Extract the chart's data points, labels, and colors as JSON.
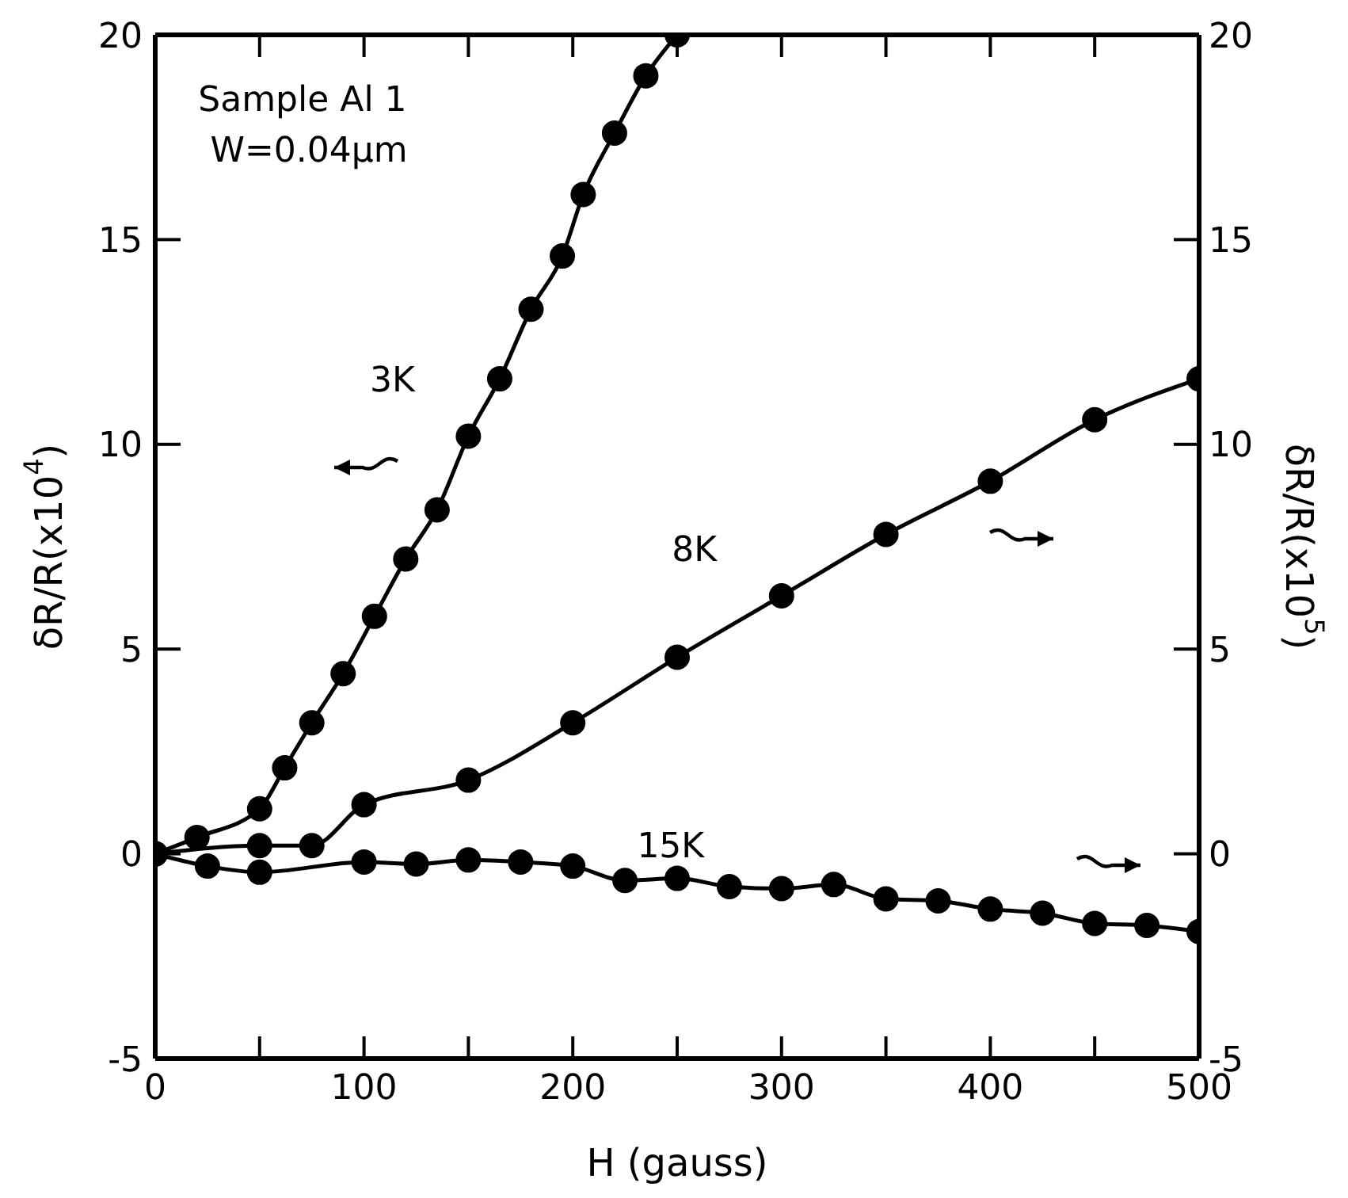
{
  "chart_data": {
    "type": "line",
    "xlabel": "H (gauss)",
    "ylabel": "δR/R(x10$^{4}$)",
    "y2label": "δR/R(x10$^{5}$)",
    "annotations": [
      "Sample Al 1",
      "W=0.04μm"
    ],
    "xlim": [
      0,
      500
    ],
    "xticks": [
      0,
      {
        "value": 50,
        "label": null
      },
      100,
      {
        "value": 150,
        "label": null
      },
      200,
      {
        "value": 250,
        "label": null
      },
      300,
      {
        "value": 350,
        "label": null
      },
      400,
      {
        "value": 450,
        "label": null
      },
      500
    ],
    "ylim": [
      -5,
      20
    ],
    "yticks": [
      -5,
      0,
      5,
      10,
      15,
      20
    ],
    "y2lim": [
      -5,
      20
    ],
    "y2ticks": [
      -5,
      0,
      5,
      10,
      15,
      20
    ],
    "marker": "circle",
    "line_style": "solid",
    "series": [
      {
        "name": "3K",
        "color": "#000000",
        "x": [
          0,
          20,
          50,
          62,
          75,
          90,
          105,
          120,
          135,
          150,
          165,
          180,
          195,
          205,
          220,
          235,
          250
        ],
        "values": [
          0,
          0.4,
          1.1,
          2.1,
          3.2,
          4.4,
          5.8,
          7.2,
          8.4,
          10.2,
          11.6,
          13.3,
          14.6,
          16.1,
          17.6,
          19.0,
          20.0
        ]
      },
      {
        "name": "8K",
        "color": "#000000",
        "axis": "y2",
        "x": [
          0,
          50,
          75,
          100,
          150,
          200,
          250,
          300,
          350,
          400,
          450,
          500
        ],
        "values": [
          0,
          0.2,
          0.2,
          1.2,
          1.8,
          3.2,
          4.8,
          6.3,
          7.8,
          9.1,
          10.6,
          11.6
        ]
      },
      {
        "name": "15K",
        "color": "#000000",
        "axis": "y2",
        "x": [
          0,
          25,
          50,
          100,
          125,
          150,
          175,
          200,
          225,
          250,
          275,
          300,
          325,
          350,
          375,
          400,
          425,
          450,
          475,
          500
        ],
        "values": [
          0,
          -0.3,
          -0.45,
          -0.2,
          -0.25,
          -0.15,
          -0.2,
          -0.3,
          -0.65,
          -0.6,
          -0.8,
          -0.85,
          -0.75,
          -1.1,
          -1.15,
          -1.35,
          -1.45,
          -1.7,
          -1.75,
          -1.9
        ]
      }
    ]
  }
}
